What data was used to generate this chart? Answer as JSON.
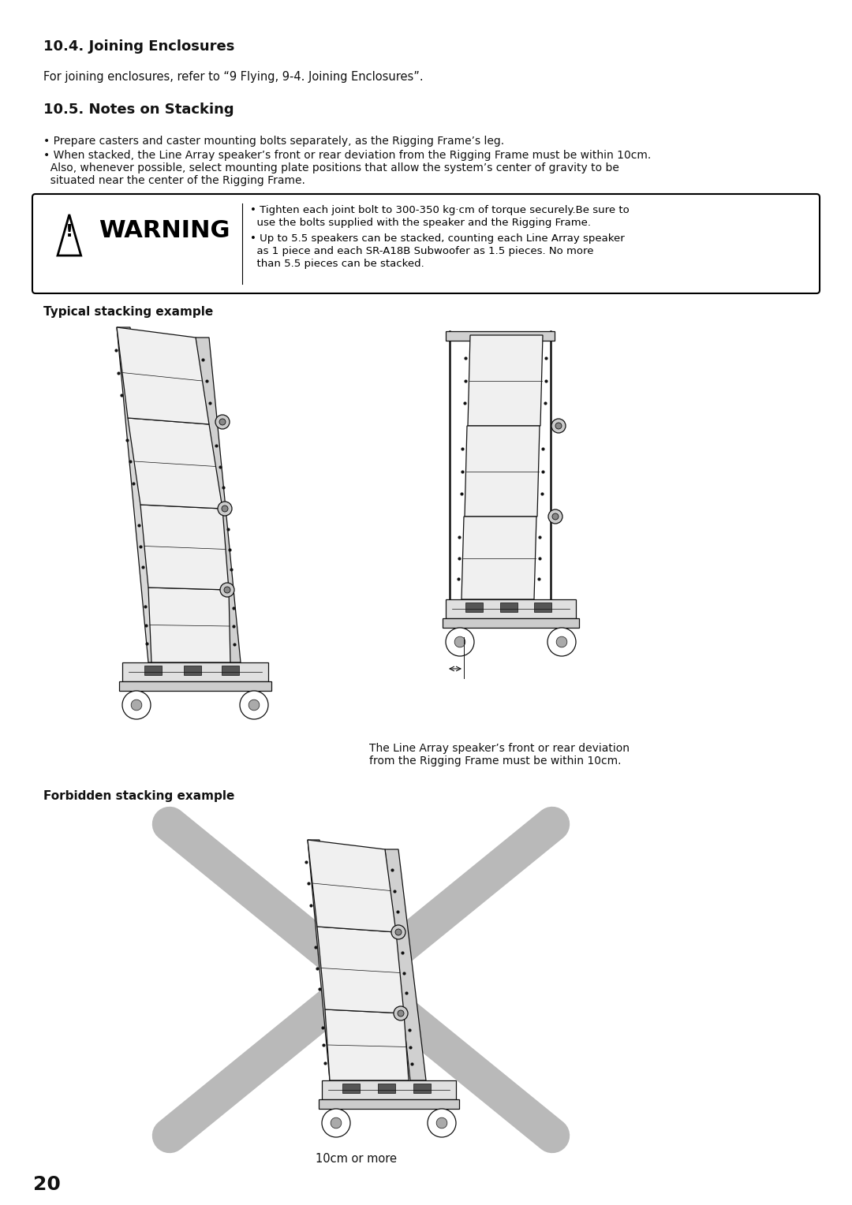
{
  "bg_color": "#ffffff",
  "title_44": "10.4. Joining Enclosures",
  "body_44": "For joining enclosures, refer to “9 Flying, 9-4. Joining Enclosures”.",
  "title_45": "10.5. Notes on Stacking",
  "bullet1": "• Prepare casters and caster mounting bolts separately, as the Rigging Frame’s leg.",
  "bullet2a": "• When stacked, the Line Array speaker’s front or rear deviation from the Rigging Frame must be within 10cm.",
  "bullet2b": "  Also, whenever possible, select mounting plate positions that allow the system’s center of gravity to be",
  "bullet2c": "  situated near the center of the Rigging Frame.",
  "warn1a": "• Tighten each joint bolt to 300-350 kg·cm of torque securely.Be sure to",
  "warn1b": "  use the bolts supplied with the speaker and the Rigging Frame.",
  "warn2a": "• Up to 5.5 speakers can be stacked, counting each Line Array speaker",
  "warn2b": "  as 1 piece and each SR-A18B Subwoofer as 1.5 pieces. No more",
  "warn2c": "  than 5.5 pieces can be stacked.",
  "label_typical": "Typical stacking example",
  "caption_line1": "The Line Array speaker’s front or rear deviation",
  "caption_line2": "from the Rigging Frame must be within 10cm.",
  "label_forbidden": "Forbidden stacking example",
  "caption_forbidden": "10cm or more",
  "page_number": "20",
  "cross_color": "#a0a0a0",
  "dark": "#111111",
  "mid": "#888888",
  "light": "#e8e8e8",
  "lighter": "#f2f2f2"
}
